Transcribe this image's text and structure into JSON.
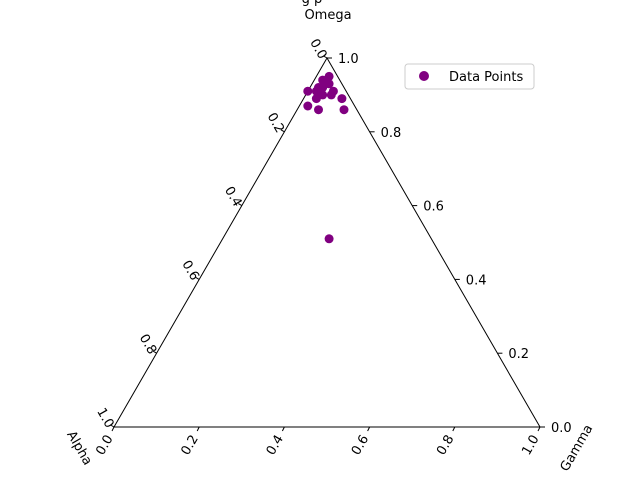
{
  "chart_data": {
    "type": "ternary-scatter",
    "title_partial": "g p",
    "axes": {
      "top": "Omega",
      "left": "Alpha",
      "right": "Gamma"
    },
    "ticks": [
      0.0,
      0.2,
      0.4,
      0.6,
      0.8,
      1.0
    ],
    "tick_labels": [
      "0.0",
      "0.2",
      "0.4",
      "0.6",
      "0.8",
      "1.0"
    ],
    "legend": {
      "label": "Data Points",
      "placement": "top-right"
    },
    "series": [
      {
        "name": "Data Points",
        "color": "#800080",
        "points": [
          {
            "alpha": 0.02,
            "gamma": 0.03,
            "omega": 0.95
          },
          {
            "alpha": 0.04,
            "gamma": 0.02,
            "omega": 0.94
          },
          {
            "alpha": 0.03,
            "gamma": 0.04,
            "omega": 0.93
          },
          {
            "alpha": 0.05,
            "gamma": 0.03,
            "omega": 0.92
          },
          {
            "alpha": 0.06,
            "gamma": 0.02,
            "omega": 0.92
          },
          {
            "alpha": 0.06,
            "gamma": 0.04,
            "omega": 0.9
          },
          {
            "alpha": 0.04,
            "gamma": 0.06,
            "omega": 0.9
          },
          {
            "alpha": 0.07,
            "gamma": 0.02,
            "omega": 0.91
          },
          {
            "alpha": 0.09,
            "gamma": 0.0,
            "omega": 0.91
          },
          {
            "alpha": 0.08,
            "gamma": 0.03,
            "omega": 0.89
          },
          {
            "alpha": 0.03,
            "gamma": 0.06,
            "omega": 0.91
          },
          {
            "alpha": 0.02,
            "gamma": 0.09,
            "omega": 0.89
          },
          {
            "alpha": 0.11,
            "gamma": 0.02,
            "omega": 0.87
          },
          {
            "alpha": 0.09,
            "gamma": 0.05,
            "omega": 0.86
          },
          {
            "alpha": 0.03,
            "gamma": 0.11,
            "omega": 0.86
          },
          {
            "alpha": 0.24,
            "gamma": 0.25,
            "omega": 0.51
          }
        ]
      }
    ]
  }
}
